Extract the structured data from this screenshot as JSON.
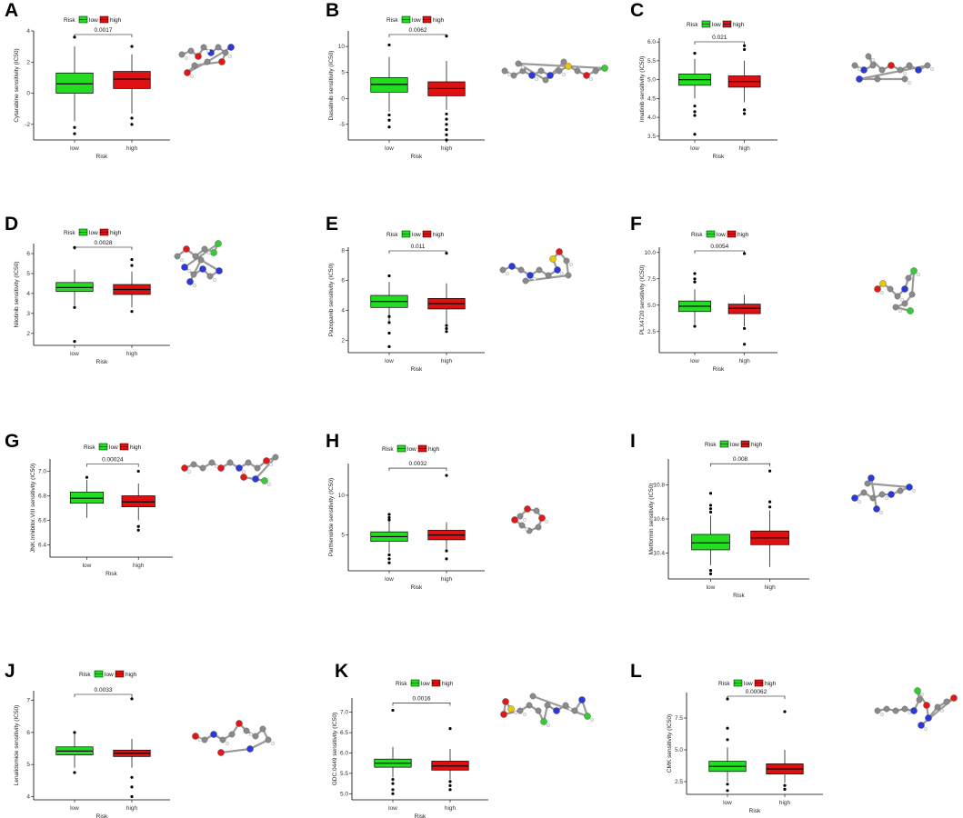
{
  "figure": {
    "legend_title": "Risk",
    "x_axis_label": "Risk",
    "colors": {
      "low": "#22dd22",
      "high": "#dd1111",
      "axis": "#000000",
      "median": "#000000"
    }
  },
  "chart_data": [
    {
      "panel": "A",
      "type": "box",
      "drug": "Cytarabine",
      "ylabel": "Cytarabine sensitivity (IC50)",
      "categories": [
        "low",
        "high"
      ],
      "legend": [
        "low",
        "high"
      ],
      "ylim": [
        -3,
        4
      ],
      "yticks": [
        -2,
        0,
        2,
        4
      ],
      "pvalue": "0.0017",
      "boxes": [
        {
          "group": "low",
          "whisker_low": -1.8,
          "q1": 0.0,
          "median": 0.6,
          "q3": 1.3,
          "whisker_high": 3.0,
          "outliers": [
            3.6,
            -2.2,
            -2.6
          ]
        },
        {
          "group": "high",
          "whisker_low": -1.3,
          "q1": 0.3,
          "median": 0.9,
          "q3": 1.4,
          "whisker_high": 2.5,
          "outliers": [
            3.0,
            -1.6,
            -2.0
          ]
        }
      ]
    },
    {
      "panel": "B",
      "type": "box",
      "drug": "Dasatinib",
      "ylabel": "Dasatinib sensitivity (IC50)",
      "categories": [
        "low",
        "high"
      ],
      "legend": [
        "low",
        "high"
      ],
      "ylim": [
        -8,
        13
      ],
      "yticks": [
        -5,
        0,
        5,
        10
      ],
      "pvalue": "0.0062",
      "boxes": [
        {
          "group": "low",
          "whisker_low": -2.5,
          "q1": 1.2,
          "median": 2.7,
          "q3": 4.0,
          "whisker_high": 8.0,
          "outliers": [
            10.3,
            -3.2,
            -4.2,
            -5.5
          ]
        },
        {
          "group": "high",
          "whisker_low": -2.2,
          "q1": 0.5,
          "median": 1.9,
          "q3": 3.2,
          "whisker_high": 7.2,
          "outliers": [
            12.0,
            -3.0,
            -4.0,
            -5.0,
            -6.0,
            -7.0,
            -8.0
          ]
        }
      ]
    },
    {
      "panel": "C",
      "type": "box",
      "drug": "Imatinib",
      "ylabel": "Imatinib sensitivity (IC50)",
      "categories": [
        "low",
        "high"
      ],
      "legend": [
        "low",
        "high"
      ],
      "ylim": [
        3.4,
        6.1
      ],
      "yticks": [
        3.5,
        4.0,
        4.5,
        5.0,
        5.5,
        6.0
      ],
      "pvalue": "0.021",
      "boxes": [
        {
          "group": "low",
          "whisker_low": 4.5,
          "q1": 4.85,
          "median": 5.0,
          "q3": 5.15,
          "whisker_high": 5.55,
          "outliers": [
            5.7,
            4.3,
            4.15,
            4.05,
            3.55
          ]
        },
        {
          "group": "high",
          "whisker_low": 4.4,
          "q1": 4.8,
          "median": 4.95,
          "q3": 5.1,
          "whisker_high": 5.5,
          "outliers": [
            5.9,
            5.8,
            4.2,
            4.1
          ]
        }
      ]
    },
    {
      "panel": "D",
      "type": "box",
      "drug": "Nilotinib",
      "ylabel": "Nilotinib sensitivity (IC50)",
      "categories": [
        "low",
        "high"
      ],
      "legend": [
        "low",
        "high"
      ],
      "ylim": [
        1.4,
        6.5
      ],
      "yticks": [
        2,
        3,
        4,
        5,
        6
      ],
      "pvalue": "0.0028",
      "boxes": [
        {
          "group": "low",
          "whisker_low": 3.4,
          "q1": 4.1,
          "median": 4.3,
          "q3": 4.55,
          "whisker_high": 5.2,
          "outliers": [
            6.3,
            3.3,
            1.6
          ]
        },
        {
          "group": "high",
          "whisker_low": 3.3,
          "q1": 3.95,
          "median": 4.2,
          "q3": 4.45,
          "whisker_high": 5.1,
          "outliers": [
            5.7,
            5.4,
            3.1
          ]
        }
      ]
    },
    {
      "panel": "E",
      "type": "box",
      "drug": "Pazopanib",
      "ylabel": "Pazopanib sensitivity (IC50)",
      "categories": [
        "low",
        "high"
      ],
      "legend": [
        "low",
        "high"
      ],
      "ylim": [
        1.2,
        8.2
      ],
      "yticks": [
        2,
        4,
        6,
        8
      ],
      "pvalue": "0.011",
      "boxes": [
        {
          "group": "low",
          "whisker_low": 3.3,
          "q1": 4.2,
          "median": 4.6,
          "q3": 5.0,
          "whisker_high": 5.9,
          "outliers": [
            6.3,
            3.6,
            3.2,
            2.5,
            1.6
          ]
        },
        {
          "group": "high",
          "whisker_low": 3.1,
          "q1": 4.1,
          "median": 4.45,
          "q3": 4.8,
          "whisker_high": 5.8,
          "outliers": [
            7.8,
            3.0,
            2.8,
            2.6
          ]
        }
      ]
    },
    {
      "panel": "F",
      "type": "box",
      "drug": "PLX4720",
      "ylabel": "PLX4720 sensitivity (IC50)",
      "categories": [
        "low",
        "high"
      ],
      "legend": [
        "low",
        "high"
      ],
      "ylim": [
        0.5,
        10.5
      ],
      "yticks": [
        2.5,
        5.0,
        7.5,
        10.0
      ],
      "pvalue": "0.0054",
      "boxes": [
        {
          "group": "low",
          "whisker_low": 3.2,
          "q1": 4.4,
          "median": 4.9,
          "q3": 5.4,
          "whisker_high": 6.5,
          "outliers": [
            8.0,
            7.5,
            7.2,
            3.0
          ]
        },
        {
          "group": "high",
          "whisker_low": 3.0,
          "q1": 4.2,
          "median": 4.7,
          "q3": 5.1,
          "whisker_high": 6.0,
          "outliers": [
            9.9,
            2.8,
            1.3
          ]
        }
      ]
    },
    {
      "panel": "G",
      "type": "box",
      "drug": "JNK Inhibitor VIII",
      "ylabel": "JNK.Inhibitor.VIII sensitivity (IC50)",
      "categories": [
        "low",
        "high"
      ],
      "legend": [
        "low",
        "high"
      ],
      "ylim": [
        6.3,
        7.1
      ],
      "yticks": [
        6.4,
        6.6,
        6.8,
        7.0
      ],
      "pvalue": "0.00024",
      "boxes": [
        {
          "group": "low",
          "whisker_low": 6.62,
          "q1": 6.74,
          "median": 6.78,
          "q3": 6.83,
          "whisker_high": 6.93,
          "outliers": [
            6.95
          ]
        },
        {
          "group": "high",
          "whisker_low": 6.6,
          "q1": 6.71,
          "median": 6.75,
          "q3": 6.8,
          "whisker_high": 6.9,
          "outliers": [
            7.0,
            6.55,
            6.52
          ]
        }
      ]
    },
    {
      "panel": "H",
      "type": "box",
      "drug": "Parthenolide",
      "ylabel": "Parthenolide sensitivity (IC50)",
      "categories": [
        "low",
        "high"
      ],
      "legend": [
        "low",
        "high"
      ],
      "ylim": [
        0.5,
        14
      ],
      "yticks": [
        5,
        10
      ],
      "pvalue": "0.0032",
      "boxes": [
        {
          "group": "low",
          "whisker_low": 2.8,
          "q1": 4.2,
          "median": 4.8,
          "q3": 5.4,
          "whisker_high": 6.8,
          "outliers": [
            7.6,
            7.2,
            6.9,
            2.5,
            2.0,
            1.5
          ]
        },
        {
          "group": "high",
          "whisker_low": 3.0,
          "q1": 4.4,
          "median": 5.0,
          "q3": 5.6,
          "whisker_high": 6.6,
          "outliers": [
            12.5,
            3.0,
            2.0
          ]
        }
      ]
    },
    {
      "panel": "I",
      "type": "box",
      "drug": "Metformin",
      "ylabel": "Metformin sensitivity (IC50)",
      "categories": [
        "low",
        "high"
      ],
      "legend": [
        "low",
        "high"
      ],
      "ylim": [
        10.25,
        10.95
      ],
      "yticks": [
        10.4,
        10.6,
        10.8
      ],
      "pvalue": "0.008",
      "boxes": [
        {
          "group": "low",
          "whisker_low": 10.33,
          "q1": 10.42,
          "median": 10.46,
          "q3": 10.51,
          "whisker_high": 10.62,
          "outliers": [
            10.75,
            10.68,
            10.66,
            10.64,
            10.3,
            10.28
          ]
        },
        {
          "group": "high",
          "whisker_low": 10.32,
          "q1": 10.45,
          "median": 10.49,
          "q3": 10.53,
          "whisker_high": 10.65,
          "outliers": [
            10.88,
            10.7,
            10.67
          ]
        }
      ]
    },
    {
      "panel": "J",
      "type": "box",
      "drug": "Lenalidomide",
      "ylabel": "Lenalidomide sensitivity (IC50)",
      "categories": [
        "low",
        "high"
      ],
      "legend": [
        "low",
        "high"
      ],
      "ylim": [
        3.9,
        7.3
      ],
      "yticks": [
        4,
        5,
        6,
        7
      ],
      "pvalue": "0.0033",
      "boxes": [
        {
          "group": "low",
          "whisker_low": 4.9,
          "q1": 5.3,
          "median": 5.42,
          "q3": 5.55,
          "whisker_high": 5.95,
          "outliers": [
            6.0,
            4.75
          ]
        },
        {
          "group": "high",
          "whisker_low": 4.9,
          "q1": 5.25,
          "median": 5.35,
          "q3": 5.45,
          "whisker_high": 5.8,
          "outliers": [
            7.05,
            4.6,
            4.3,
            4.0
          ]
        }
      ]
    },
    {
      "panel": "K",
      "type": "box",
      "drug": "GDC0449",
      "ylabel": "GDC.0449 sensitivity (IC50)",
      "categories": [
        "low",
        "high"
      ],
      "legend": [
        "low",
        "high"
      ],
      "ylim": [
        4.85,
        7.35
      ],
      "yticks": [
        5.0,
        5.5,
        6.0,
        6.5,
        7.0
      ],
      "pvalue": "0.0016",
      "boxes": [
        {
          "group": "low",
          "whisker_low": 5.4,
          "q1": 5.65,
          "median": 5.75,
          "q3": 5.85,
          "whisker_high": 6.15,
          "outliers": [
            7.05,
            5.35,
            5.25,
            5.1,
            5.0
          ]
        },
        {
          "group": "high",
          "whisker_low": 5.35,
          "q1": 5.58,
          "median": 5.68,
          "q3": 5.8,
          "whisker_high": 6.1,
          "outliers": [
            6.6,
            5.3,
            5.2,
            5.1
          ]
        }
      ]
    },
    {
      "panel": "L",
      "type": "box",
      "drug": "CMK",
      "ylabel": "CMK sensitivity (IC50)",
      "categories": [
        "low",
        "high"
      ],
      "legend": [
        "low",
        "high"
      ],
      "ylim": [
        1.5,
        9.5
      ],
      "yticks": [
        2.5,
        5.0,
        7.5
      ],
      "pvalue": "0.00062",
      "boxes": [
        {
          "group": "low",
          "whisker_low": 2.5,
          "q1": 3.3,
          "median": 3.7,
          "q3": 4.1,
          "whisker_high": 5.2,
          "outliers": [
            9.0,
            6.7,
            5.8,
            2.3,
            1.8
          ]
        },
        {
          "group": "high",
          "whisker_low": 2.4,
          "q1": 3.1,
          "median": 3.5,
          "q3": 3.9,
          "whisker_high": 5.0,
          "outliers": [
            8.0,
            2.2,
            1.9
          ]
        }
      ]
    }
  ]
}
